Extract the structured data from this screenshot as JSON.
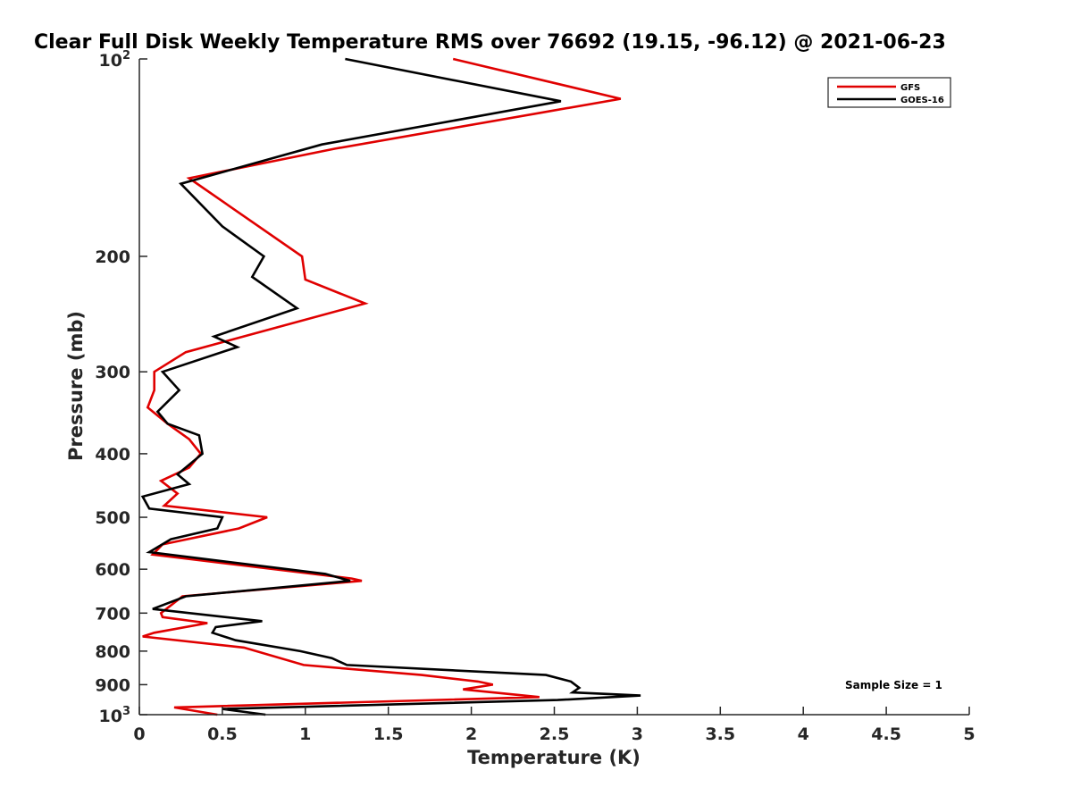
{
  "chart_data": {
    "type": "line",
    "title": "Clear Full Disk Weekly Temperature RMS over 76692 (19.15, -96.12) @ 2021-06-23",
    "xlabel": "Temperature (K)",
    "ylabel": "Pressure (mb)",
    "xlim": [
      0,
      5
    ],
    "ylim": [
      100,
      1000
    ],
    "yscale": "log",
    "yreversed": true,
    "x_ticks": [
      0,
      0.5,
      1,
      1.5,
      2,
      2.5,
      3,
      3.5,
      4,
      4.5,
      5
    ],
    "x_tick_labels": [
      "0",
      "0.5",
      "1",
      "1.5",
      "2",
      "2.5",
      "3",
      "3.5",
      "4",
      "4.5",
      "5"
    ],
    "y_ticks": [
      200,
      300,
      400,
      500,
      600,
      700,
      800,
      900
    ],
    "y_tick_labels": [
      "200",
      "300",
      "400",
      "500",
      "600",
      "700",
      "800",
      "900"
    ],
    "y_top_label": {
      "base": "10",
      "exp": "2"
    },
    "y_bottom_label": {
      "base": "10",
      "exp": "3"
    },
    "legend_position": "top-right",
    "grid": false,
    "annotation": "Sample Size = 1",
    "series": [
      {
        "name": "GFS",
        "color": "#e00000",
        "points": [
          [
            1.89,
            100
          ],
          [
            2.9,
            115
          ],
          [
            1.18,
            137
          ],
          [
            0.3,
            152
          ],
          [
            0.98,
            200
          ],
          [
            1.0,
            217
          ],
          [
            1.36,
            236
          ],
          [
            0.28,
            280
          ],
          [
            0.09,
            300
          ],
          [
            0.09,
            320
          ],
          [
            0.05,
            340
          ],
          [
            0.17,
            360
          ],
          [
            0.3,
            380
          ],
          [
            0.37,
            400
          ],
          [
            0.3,
            420
          ],
          [
            0.13,
            440
          ],
          [
            0.23,
            460
          ],
          [
            0.15,
            480
          ],
          [
            0.77,
            500
          ],
          [
            0.6,
            520
          ],
          [
            0.14,
            550
          ],
          [
            0.08,
            570
          ],
          [
            1.28,
            620
          ],
          [
            1.34,
            625
          ],
          [
            0.26,
            660
          ],
          [
            0.13,
            700
          ],
          [
            0.14,
            710
          ],
          [
            0.41,
            725
          ],
          [
            0.09,
            750
          ],
          [
            0.02,
            760
          ],
          [
            0.63,
            790
          ],
          [
            0.99,
            840
          ],
          [
            1.7,
            870
          ],
          [
            2.04,
            890
          ],
          [
            2.13,
            900
          ],
          [
            1.95,
            915
          ],
          [
            2.41,
            940
          ],
          [
            0.21,
            975
          ],
          [
            0.47,
            1000
          ]
        ]
      },
      {
        "name": "GOES-16",
        "color": "#000000",
        "points": [
          [
            1.24,
            100
          ],
          [
            2.54,
            116
          ],
          [
            1.1,
            135
          ],
          [
            0.25,
            155
          ],
          [
            0.5,
            180
          ],
          [
            0.75,
            200
          ],
          [
            0.68,
            215
          ],
          [
            0.95,
            240
          ],
          [
            0.45,
            265
          ],
          [
            0.59,
            275
          ],
          [
            0.14,
            300
          ],
          [
            0.24,
            320
          ],
          [
            0.11,
            345
          ],
          [
            0.17,
            360
          ],
          [
            0.36,
            375
          ],
          [
            0.38,
            400
          ],
          [
            0.23,
            430
          ],
          [
            0.3,
            445
          ],
          [
            0.02,
            465
          ],
          [
            0.06,
            485
          ],
          [
            0.5,
            500
          ],
          [
            0.47,
            520
          ],
          [
            0.19,
            540
          ],
          [
            0.06,
            565
          ],
          [
            1.12,
            610
          ],
          [
            1.27,
            625
          ],
          [
            0.28,
            660
          ],
          [
            0.08,
            690
          ],
          [
            0.74,
            720
          ],
          [
            0.46,
            735
          ],
          [
            0.44,
            750
          ],
          [
            0.58,
            770
          ],
          [
            0.97,
            800
          ],
          [
            1.16,
            820
          ],
          [
            1.25,
            840
          ],
          [
            2.45,
            870
          ],
          [
            2.6,
            890
          ],
          [
            2.65,
            910
          ],
          [
            2.61,
            925
          ],
          [
            3.02,
            935
          ],
          [
            2.52,
            950
          ],
          [
            0.5,
            980
          ],
          [
            0.76,
            1000
          ]
        ]
      }
    ]
  }
}
